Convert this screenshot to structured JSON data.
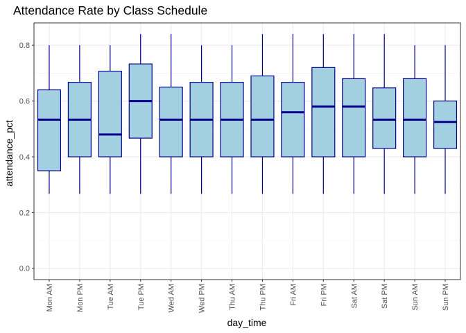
{
  "chart_data": {
    "type": "boxplot",
    "title": "Attendance Rate by Class Schedule",
    "xlabel": "day_time",
    "ylabel": "attendance_pct",
    "ylim": [
      -0.04,
      0.88
    ],
    "yticks": [
      0.0,
      0.2,
      0.4,
      0.6,
      0.8
    ],
    "ytick_labels": [
      "0.0",
      "0.2",
      "0.4",
      "0.6",
      "0.8"
    ],
    "grid": true,
    "legend": "none",
    "categories": [
      "Mon AM",
      "Mon PM",
      "Tue AM",
      "Tue PM",
      "Wed AM",
      "Wed PM",
      "Thu AM",
      "Thu PM",
      "Fri AM",
      "Fri PM",
      "Sat AM",
      "Sat PM",
      "Sun AM",
      "Sun PM"
    ],
    "boxes": [
      {
        "min": 0.267,
        "q1": 0.35,
        "median": 0.533,
        "q3": 0.64,
        "max": 0.8
      },
      {
        "min": 0.267,
        "q1": 0.4,
        "median": 0.533,
        "q3": 0.667,
        "max": 0.8
      },
      {
        "min": 0.267,
        "q1": 0.4,
        "median": 0.48,
        "q3": 0.707,
        "max": 0.8
      },
      {
        "min": 0.267,
        "q1": 0.467,
        "median": 0.6,
        "q3": 0.733,
        "max": 0.84
      },
      {
        "min": 0.267,
        "q1": 0.4,
        "median": 0.533,
        "q3": 0.65,
        "max": 0.84
      },
      {
        "min": 0.267,
        "q1": 0.4,
        "median": 0.533,
        "q3": 0.667,
        "max": 0.8
      },
      {
        "min": 0.267,
        "q1": 0.4,
        "median": 0.533,
        "q3": 0.667,
        "max": 0.8
      },
      {
        "min": 0.267,
        "q1": 0.4,
        "median": 0.533,
        "q3": 0.69,
        "max": 0.84
      },
      {
        "min": 0.267,
        "q1": 0.4,
        "median": 0.56,
        "q3": 0.667,
        "max": 0.84
      },
      {
        "min": 0.267,
        "q1": 0.4,
        "median": 0.58,
        "q3": 0.72,
        "max": 0.84
      },
      {
        "min": 0.267,
        "q1": 0.4,
        "median": 0.58,
        "q3": 0.68,
        "max": 0.84
      },
      {
        "min": 0.267,
        "q1": 0.43,
        "median": 0.533,
        "q3": 0.647,
        "max": 0.84
      },
      {
        "min": 0.267,
        "q1": 0.4,
        "median": 0.533,
        "q3": 0.68,
        "max": 0.8
      },
      {
        "min": 0.267,
        "q1": 0.43,
        "median": 0.525,
        "q3": 0.6,
        "max": 0.8
      }
    ],
    "colors": {
      "box_fill": "#a3d0e1",
      "box_outline": "#00008b",
      "grid_major": "#ebebeb",
      "grid_minor": "#f5f5f5",
      "panel_border": "#333333",
      "tick_text": "#4d4d4d"
    }
  }
}
